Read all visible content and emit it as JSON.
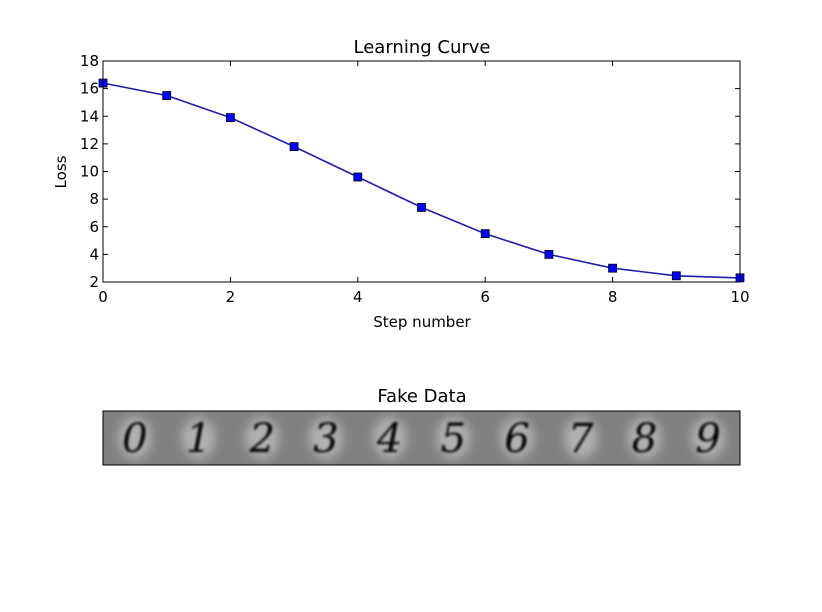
{
  "chart_data": [
    {
      "type": "line",
      "title": "Learning Curve",
      "xlabel": "Step number",
      "ylabel": "Loss",
      "xlim": [
        0,
        10
      ],
      "ylim": [
        2,
        18
      ],
      "xticks": [
        "0",
        "2",
        "4",
        "6",
        "8",
        "10"
      ],
      "yticks": [
        "2",
        "4",
        "6",
        "8",
        "10",
        "12",
        "14",
        "16",
        "18"
      ],
      "grid": false,
      "legend": "none",
      "line_color": "#1f1fa8",
      "marker_color": "#0000ff",
      "series": [
        {
          "x": [
            0,
            1,
            2,
            3,
            4,
            5,
            6,
            7,
            8,
            9,
            10
          ],
          "y": [
            16.4,
            15.5,
            13.9,
            11.8,
            9.6,
            7.4,
            5.5,
            4.0,
            3.0,
            2.45,
            2.3
          ]
        }
      ]
    },
    {
      "type": "image",
      "title": "Fake Data",
      "digits": [
        "0",
        "1",
        "2",
        "3",
        "4",
        "5",
        "6",
        "7",
        "8",
        "9"
      ],
      "background_color": "#808080"
    }
  ]
}
